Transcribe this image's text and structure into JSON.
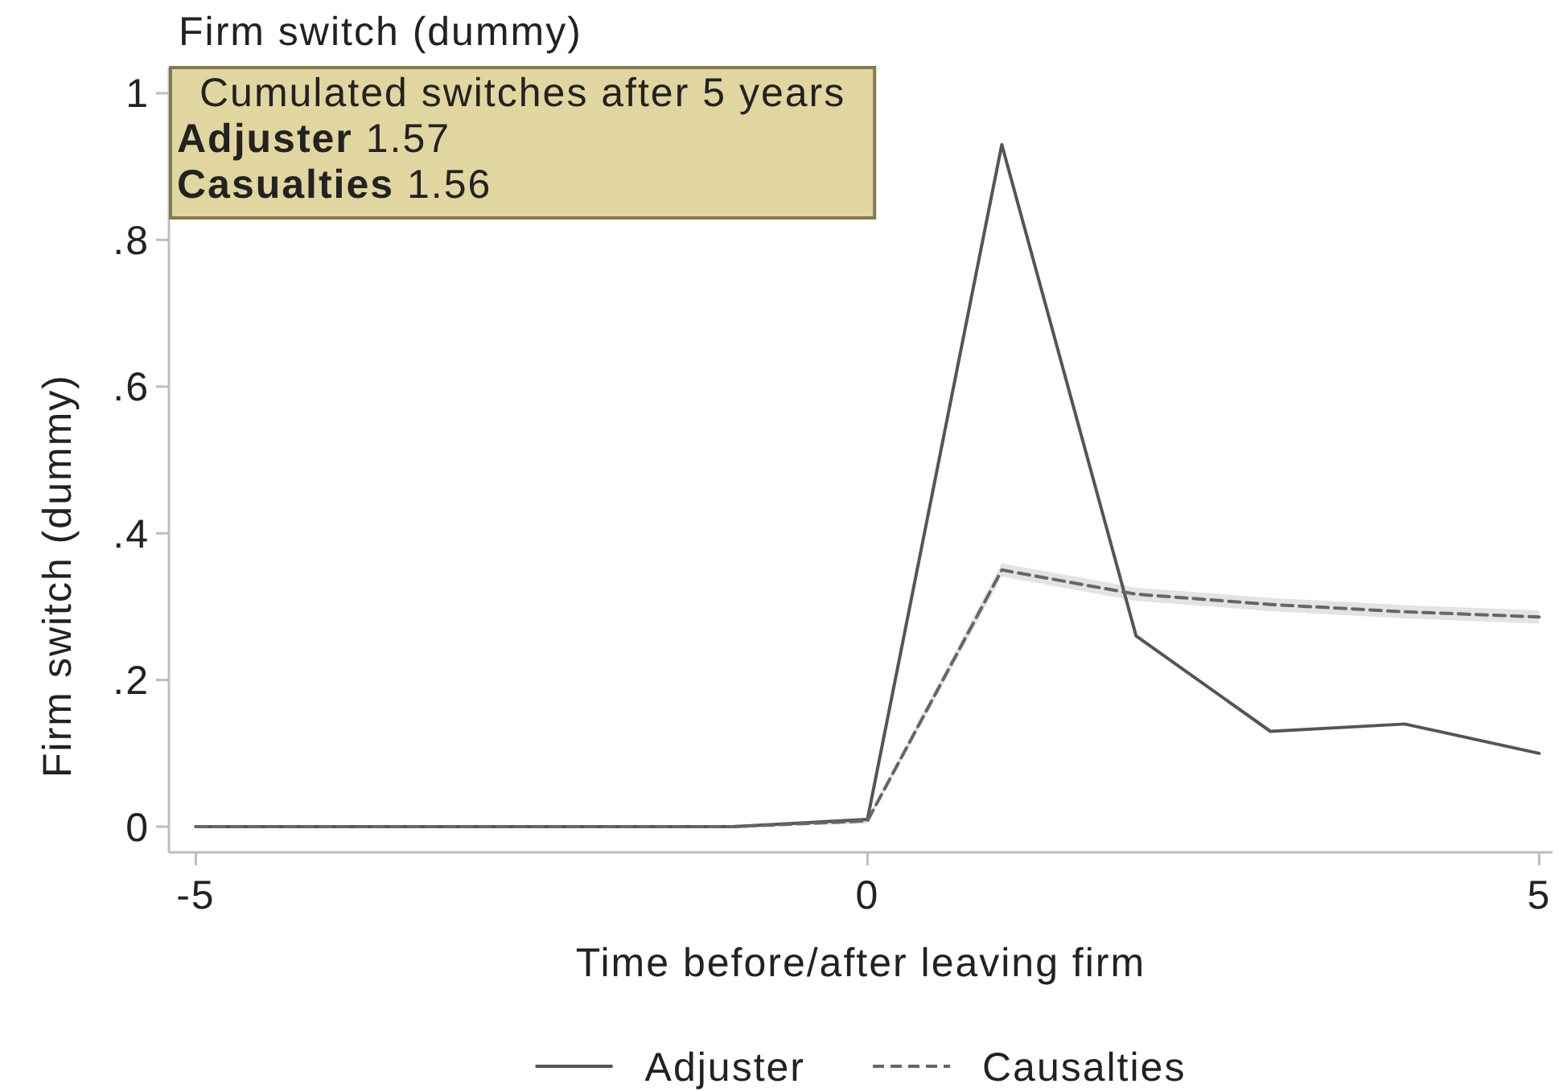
{
  "chart_data": {
    "type": "line",
    "title": "Firm switch (dummy)",
    "xlabel": "Time before/after leaving firm",
    "ylabel": "Firm switch (dummy)",
    "annotations": [
      "Cumulated switches after 5 years",
      "Adjuster 1.57",
      "Casualties 1.56"
    ],
    "x": [
      -5,
      -4,
      -3,
      -2,
      -1,
      0,
      1,
      2,
      3,
      4,
      5
    ],
    "series": [
      {
        "name": "Adjuster",
        "color": "#555555",
        "line_style": "solid",
        "values": [
          0,
          0,
          0,
          0,
          0,
          0.01,
          0.93,
          0.26,
          0.13,
          0.14,
          0.1
        ]
      },
      {
        "name": "Causalties",
        "color": "#666666",
        "line_style": "dashed",
        "values": [
          0,
          0,
          0,
          0,
          0,
          0.008,
          0.35,
          0.317,
          0.303,
          0.293,
          0.286
        ],
        "lower": [
          0,
          0,
          0,
          0,
          0,
          0.004,
          0.341,
          0.308,
          0.294,
          0.284,
          0.277
        ],
        "upper": [
          0,
          0,
          0,
          0,
          0,
          0.012,
          0.359,
          0.326,
          0.312,
          0.302,
          0.295
        ]
      }
    ],
    "xlim": [
      -5.2,
      5.1
    ],
    "ylim": [
      -0.035,
      1.035
    ],
    "xticks": [
      -5,
      0,
      5
    ],
    "yticks": [
      0,
      {
        "value": 0.2,
        "label": ".2"
      },
      {
        "value": 0.4,
        "label": ".4"
      },
      {
        "value": 0.6,
        "label": ".6"
      },
      {
        "value": 0.8,
        "label": ".8"
      },
      1
    ],
    "legend": "bottom"
  }
}
